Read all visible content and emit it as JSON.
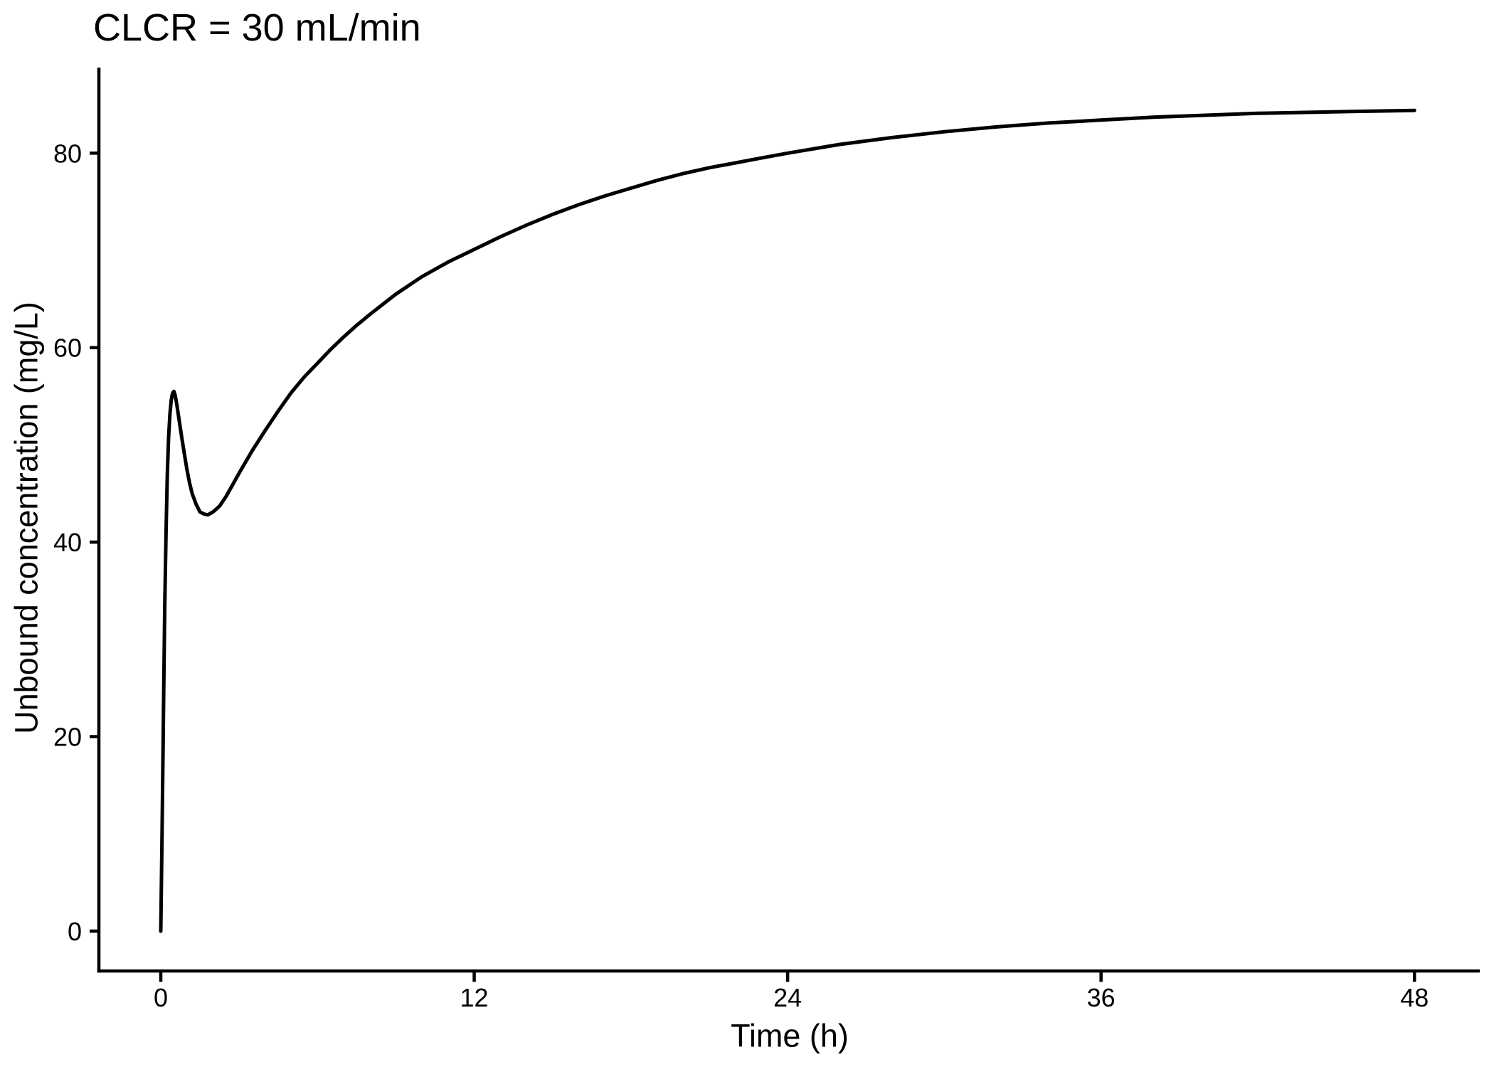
{
  "page": {
    "background": "#ffffff",
    "text_color": "#000000"
  },
  "chart_data": {
    "type": "line",
    "title": "CLCR = 30 mL/min",
    "xlabel": "Time (h)",
    "ylabel": "Unbound concentration (mg/L)",
    "x_ticks": [
      0,
      12,
      24,
      36,
      48
    ],
    "y_ticks": [
      0,
      20,
      40,
      60,
      80
    ],
    "xlim": [
      -2.37,
      50.5
    ],
    "ylim": [
      -4.1,
      88.8
    ],
    "grid": false,
    "legend": "none",
    "line_color": "#000000",
    "axis_color": "#000000",
    "series": [
      {
        "name": "unbound concentration vs time",
        "points": [
          [
            0,
            0
          ],
          [
            0.05,
            10
          ],
          [
            0.1,
            22
          ],
          [
            0.15,
            33
          ],
          [
            0.2,
            41
          ],
          [
            0.25,
            47
          ],
          [
            0.3,
            50.8
          ],
          [
            0.35,
            53.2
          ],
          [
            0.4,
            54.6
          ],
          [
            0.45,
            55.3
          ],
          [
            0.5,
            55.5
          ],
          [
            0.55,
            55.1
          ],
          [
            0.6,
            54.4
          ],
          [
            0.7,
            52.6
          ],
          [
            0.8,
            50.8
          ],
          [
            0.9,
            49.1
          ],
          [
            1,
            47.5
          ],
          [
            1.1,
            46.1
          ],
          [
            1.2,
            45
          ],
          [
            1.35,
            43.9
          ],
          [
            1.5,
            43.1
          ],
          [
            1.65,
            42.9
          ],
          [
            1.8,
            42.8
          ],
          [
            2,
            43.1
          ],
          [
            2.25,
            43.7
          ],
          [
            2.5,
            44.7
          ],
          [
            2.75,
            45.9
          ],
          [
            3,
            47.1
          ],
          [
            3.5,
            49.4
          ],
          [
            4,
            51.5
          ],
          [
            4.5,
            53.5
          ],
          [
            5,
            55.4
          ],
          [
            5.5,
            57
          ],
          [
            6,
            58.4
          ],
          [
            6.5,
            59.8
          ],
          [
            7,
            61.1
          ],
          [
            7.5,
            62.3
          ],
          [
            8,
            63.4
          ],
          [
            9,
            65.5
          ],
          [
            10,
            67.3
          ],
          [
            11,
            68.8
          ],
          [
            12,
            70.1
          ],
          [
            13,
            71.4
          ],
          [
            14,
            72.6
          ],
          [
            15,
            73.7
          ],
          [
            16,
            74.7
          ],
          [
            17,
            75.6
          ],
          [
            18,
            76.4
          ],
          [
            19,
            77.2
          ],
          [
            20,
            77.9
          ],
          [
            21,
            78.5
          ],
          [
            22,
            79
          ],
          [
            23,
            79.5
          ],
          [
            24,
            80
          ],
          [
            26,
            80.9
          ],
          [
            28,
            81.6
          ],
          [
            30,
            82.2
          ],
          [
            32,
            82.7
          ],
          [
            34,
            83.1
          ],
          [
            36,
            83.4
          ],
          [
            38,
            83.7
          ],
          [
            40,
            83.9
          ],
          [
            42,
            84.1
          ],
          [
            44,
            84.2
          ],
          [
            46,
            84.3
          ],
          [
            48,
            84.4
          ]
        ]
      }
    ],
    "features": {
      "initial_peak": {
        "t": 0.5,
        "value": 55.5
      },
      "trough": {
        "t": 1.7,
        "value": 42.8
      },
      "value_at_48h": 84.4
    }
  }
}
